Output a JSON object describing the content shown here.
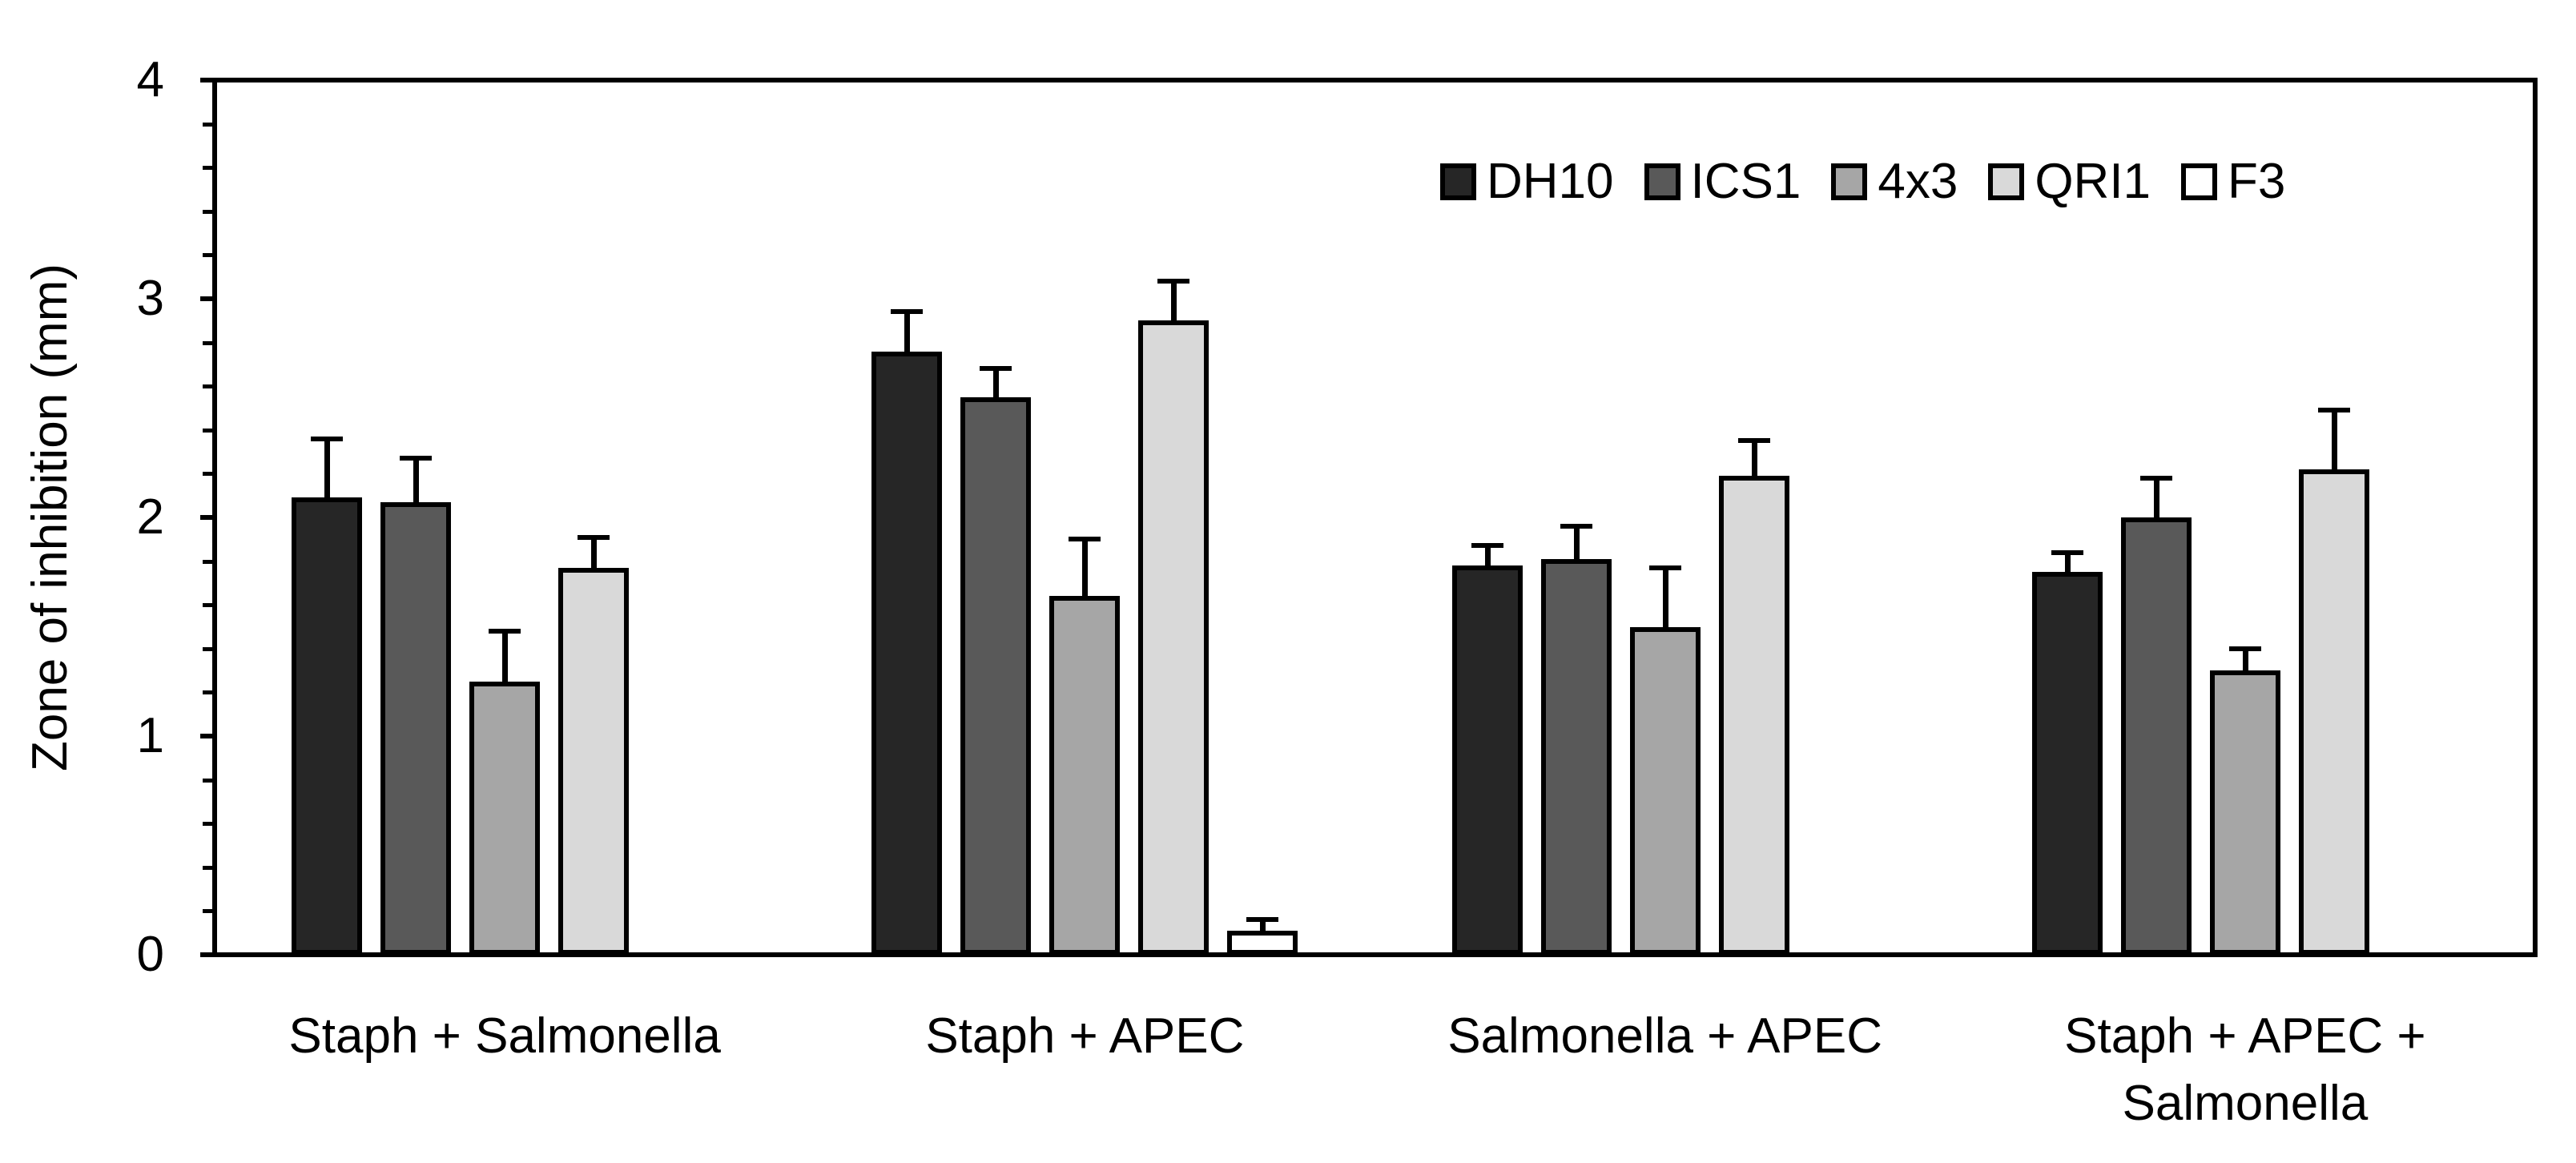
{
  "chart_data": {
    "type": "bar",
    "title": "",
    "xlabel": "",
    "ylabel": "Zone of inhibition (mm)",
    "ylim": [
      0,
      4
    ],
    "y_major_tick_step": 1,
    "y_minor_tick_step": 0.2,
    "y_tick_labels": [
      "0",
      "1",
      "2",
      "3",
      "4"
    ],
    "grid": false,
    "legend_position": "top-inside-right",
    "background_color": "#ffffff",
    "axis_color": "#000000",
    "text_color": "#000000",
    "error_bar_direction": "plus",
    "categories": [
      "Staph + Salmonella",
      "Staph + APEC",
      "Salmonella + APEC",
      "Staph + APEC +\nSalmonella"
    ],
    "series": [
      {
        "name": "DH10",
        "color": "#262626",
        "border_color": "#000000",
        "values": [
          2.09,
          2.76,
          1.78,
          1.75
        ],
        "errors": [
          0.27,
          0.18,
          0.09,
          0.09
        ]
      },
      {
        "name": "ICS1",
        "color": "#595959",
        "border_color": "#000000",
        "values": [
          2.07,
          2.55,
          1.81,
          2.0
        ],
        "errors": [
          0.2,
          0.13,
          0.15,
          0.18
        ]
      },
      {
        "name": "4x3",
        "color": "#a6a6a6",
        "border_color": "#000000",
        "values": [
          1.25,
          1.64,
          1.5,
          1.3
        ],
        "errors": [
          0.23,
          0.26,
          0.27,
          0.1
        ]
      },
      {
        "name": "QRI1",
        "color": "#d9d9d9",
        "border_color": "#000000",
        "values": [
          1.77,
          2.9,
          2.19,
          2.22
        ],
        "errors": [
          0.14,
          0.18,
          0.16,
          0.27
        ]
      },
      {
        "name": "F3",
        "color": "#ffffff",
        "border_color": "#000000",
        "values": [
          null,
          0.11,
          null,
          null
        ],
        "errors": [
          null,
          0.05,
          null,
          null
        ]
      }
    ]
  }
}
